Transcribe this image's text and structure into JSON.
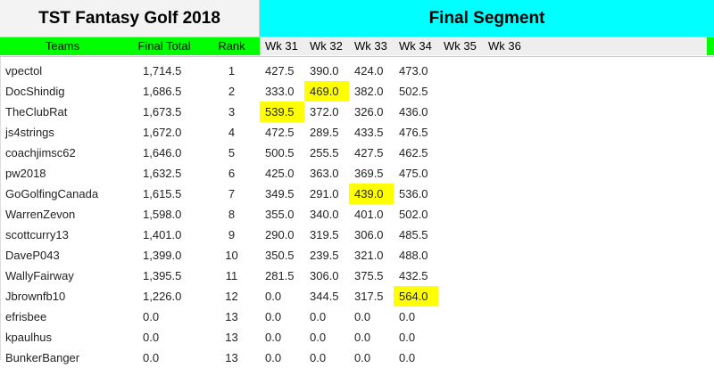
{
  "title": "TST Fantasy Golf 2018",
  "segment_title": "Final Segment",
  "headers": {
    "teams": "Teams",
    "final_total": "Final Total",
    "rank": "Rank",
    "weeks": [
      "Wk 31",
      "Wk 32",
      "Wk 33",
      "Wk 34",
      "Wk 35",
      "Wk 36"
    ]
  },
  "colors": {
    "segment_header": "#00ffff",
    "column_header": "#00ff00",
    "highlight": "#ffff00"
  },
  "rows": [
    {
      "team": "vpectol",
      "total": "1,714.5",
      "rank": "1",
      "wk31": "427.5",
      "wk32": "390.0",
      "wk33": "424.0",
      "wk34": "473.0"
    },
    {
      "team": "DocShindig",
      "total": "1,686.5",
      "rank": "2",
      "wk31": "333.0",
      "wk32": "469.0",
      "wk33": "382.0",
      "wk34": "502.5"
    },
    {
      "team": "TheClubRat",
      "total": "1,673.5",
      "rank": "3",
      "wk31": "539.5",
      "wk32": "372.0",
      "wk33": "326.0",
      "wk34": "436.0"
    },
    {
      "team": "js4strings",
      "total": "1,672.0",
      "rank": "4",
      "wk31": "472.5",
      "wk32": "289.5",
      "wk33": "433.5",
      "wk34": "476.5"
    },
    {
      "team": "coachjimsc62",
      "total": "1,646.0",
      "rank": "5",
      "wk31": "500.5",
      "wk32": "255.5",
      "wk33": "427.5",
      "wk34": "462.5"
    },
    {
      "team": "pw2018",
      "total": "1,632.5",
      "rank": "6",
      "wk31": "425.0",
      "wk32": "363.0",
      "wk33": "369.5",
      "wk34": "475.0"
    },
    {
      "team": "GoGolfingCanada",
      "total": "1,615.5",
      "rank": "7",
      "wk31": "349.5",
      "wk32": "291.0",
      "wk33": "439.0",
      "wk34": "536.0"
    },
    {
      "team": "WarrenZevon",
      "total": "1,598.0",
      "rank": "8",
      "wk31": "355.0",
      "wk32": "340.0",
      "wk33": "401.0",
      "wk34": "502.0"
    },
    {
      "team": "scottcurry13",
      "total": "1,401.0",
      "rank": "9",
      "wk31": "290.0",
      "wk32": "319.5",
      "wk33": "306.0",
      "wk34": "485.5"
    },
    {
      "team": "DaveP043",
      "total": "1,399.0",
      "rank": "10",
      "wk31": "350.5",
      "wk32": "239.5",
      "wk33": "321.0",
      "wk34": "488.0"
    },
    {
      "team": "WallyFairway",
      "total": "1,395.5",
      "rank": "11",
      "wk31": "281.5",
      "wk32": "306.0",
      "wk33": "375.5",
      "wk34": "432.5"
    },
    {
      "team": "Jbrownfb10",
      "total": "1,226.0",
      "rank": "12",
      "wk31": "0.0",
      "wk32": "344.5",
      "wk33": "317.5",
      "wk34": "564.0"
    },
    {
      "team": "efrisbee",
      "total": "0.0",
      "rank": "13",
      "wk31": "0.0",
      "wk32": "0.0",
      "wk33": "0.0",
      "wk34": "0.0"
    },
    {
      "team": "kpaulhus",
      "total": "0.0",
      "rank": "13",
      "wk31": "0.0",
      "wk32": "0.0",
      "wk33": "0.0",
      "wk34": "0.0"
    },
    {
      "team": "BunkerBanger",
      "total": "0.0",
      "rank": "13",
      "wk31": "0.0",
      "wk32": "0.0",
      "wk33": "0.0",
      "wk34": "0.0"
    }
  ],
  "highlighted_cells": [
    {
      "team": "DocShindig",
      "week": "Wk 32"
    },
    {
      "team": "TheClubRat",
      "week": "Wk 31"
    },
    {
      "team": "GoGolfingCanada",
      "week": "Wk 33"
    },
    {
      "team": "Jbrownfb10",
      "week": "Wk 34"
    }
  ]
}
